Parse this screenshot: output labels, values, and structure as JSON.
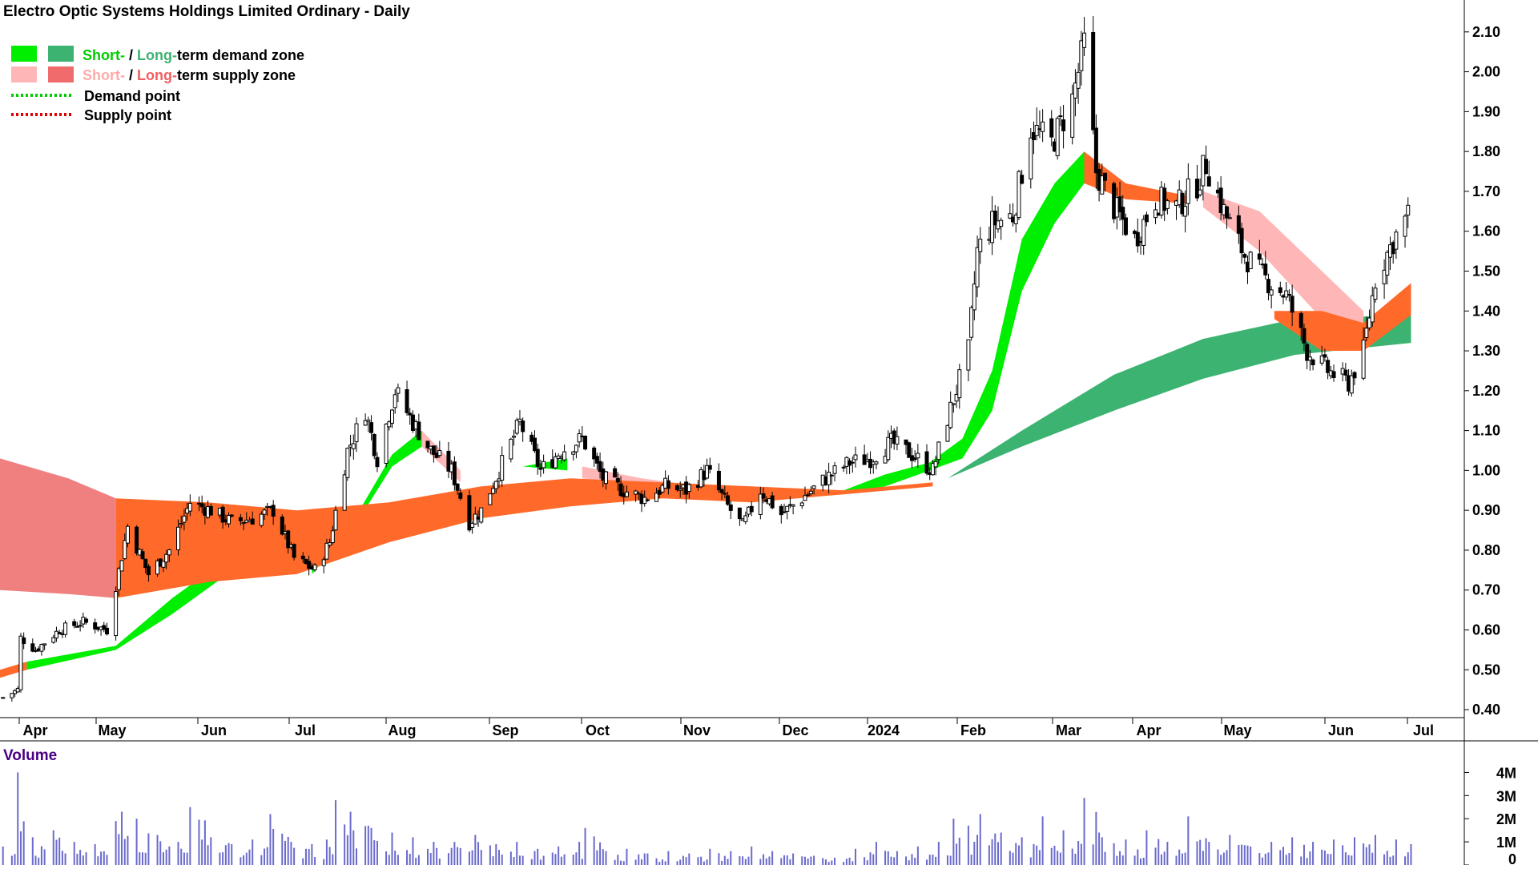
{
  "title": "Electro Optic Systems Holdings Limited Ordinary - Daily",
  "legend": {
    "demand_zone": {
      "short": "Short-",
      "sep": " / ",
      "long": "Long-",
      "rest": "term demand zone"
    },
    "supply_zone": {
      "short": "Short-",
      "sep": " / ",
      "long": "Long-",
      "rest": "term supply zone"
    },
    "demand_point": "Demand point",
    "supply_point": "Supply point"
  },
  "colors": {
    "short_demand": "#00ee00",
    "long_demand": "#3cb371",
    "short_supply": "#ffb6b6",
    "long_supply": "#ff6a2a",
    "early_supply": "#f08080",
    "demand_point": "#00cc00",
    "supply_point": "#dd0000",
    "volume": "#6a6acd",
    "volume_label": "#4b0082"
  },
  "volume_label": "Volume",
  "chart_data": [
    {
      "type": "candlestick",
      "title": "Electro Optic Systems Holdings Limited Ordinary - Daily",
      "x_tick_labels": [
        "Apr",
        "May",
        "Jun",
        "Jul",
        "Aug",
        "Sep",
        "Oct",
        "Nov",
        "Dec",
        "2024",
        "Feb",
        "Mar",
        "Apr",
        "May",
        "Jun",
        "Jul"
      ],
      "x_range": [
        "2023-03-23",
        "2024-07-15"
      ],
      "y_tick_labels": [
        "0.40",
        "0.50",
        "0.60",
        "0.70",
        "0.80",
        "0.90",
        "1.00",
        "1.10",
        "1.20",
        "1.30",
        "1.40",
        "1.50",
        "1.60",
        "1.70",
        "1.80",
        "1.90",
        "2.00",
        "2.10"
      ],
      "ylim": [
        0.38,
        2.18
      ],
      "y_axis_position": "right",
      "grid": false,
      "legend_position": "top-left",
      "price_path": [
        [
          "2023-03-24",
          0.43
        ],
        [
          "2023-03-29",
          0.45
        ],
        [
          "2023-03-30",
          0.58
        ],
        [
          "2023-04-04",
          0.55
        ],
        [
          "2023-04-12",
          0.6
        ],
        [
          "2023-04-20",
          0.62
        ],
        [
          "2023-04-28",
          0.6
        ],
        [
          "2023-05-05",
          0.86
        ],
        [
          "2023-05-12",
          0.74
        ],
        [
          "2023-05-19",
          0.8
        ],
        [
          "2023-05-26",
          0.92
        ],
        [
          "2023-06-02",
          0.9
        ],
        [
          "2023-06-09",
          0.87
        ],
        [
          "2023-06-16",
          0.88
        ],
        [
          "2023-06-23",
          0.9
        ],
        [
          "2023-06-30",
          0.78
        ],
        [
          "2023-07-07",
          0.75
        ],
        [
          "2023-07-12",
          0.82
        ],
        [
          "2023-07-18",
          1.05
        ],
        [
          "2023-07-24",
          1.15
        ],
        [
          "2023-07-28",
          1.03
        ],
        [
          "2023-08-03",
          1.2
        ],
        [
          "2023-08-09",
          1.12
        ],
        [
          "2023-08-15",
          1.05
        ],
        [
          "2023-08-22",
          1.0
        ],
        [
          "2023-08-28",
          0.87
        ],
        [
          "2023-09-01",
          0.9
        ],
        [
          "2023-09-07",
          1.0
        ],
        [
          "2023-09-14",
          1.12
        ],
        [
          "2023-09-21",
          1.0
        ],
        [
          "2023-09-28",
          1.05
        ],
        [
          "2023-10-05",
          1.08
        ],
        [
          "2023-10-12",
          0.98
        ],
        [
          "2023-10-19",
          0.95
        ],
        [
          "2023-10-26",
          0.93
        ],
        [
          "2023-11-02",
          0.96
        ],
        [
          "2023-11-09",
          0.95
        ],
        [
          "2023-11-16",
          1.0
        ],
        [
          "2023-11-23",
          0.91
        ],
        [
          "2023-11-28",
          0.86
        ],
        [
          "2023-12-04",
          0.95
        ],
        [
          "2023-12-11",
          0.89
        ],
        [
          "2023-12-18",
          0.93
        ],
        [
          "2023-12-26",
          0.98
        ],
        [
          "2024-01-03",
          1.02
        ],
        [
          "2024-01-10",
          1.03
        ],
        [
          "2024-01-17",
          1.07
        ],
        [
          "2024-01-24",
          1.04
        ],
        [
          "2024-01-31",
          1.0
        ],
        [
          "2024-02-05",
          1.13
        ],
        [
          "2024-02-12",
          1.3
        ],
        [
          "2024-02-15",
          1.55
        ],
        [
          "2024-02-20",
          1.62
        ],
        [
          "2024-02-27",
          1.64
        ],
        [
          "2024-03-04",
          1.86
        ],
        [
          "2024-03-11",
          1.82
        ],
        [
          "2024-03-18",
          1.93
        ],
        [
          "2024-03-22",
          2.07
        ],
        [
          "2024-03-26",
          1.75
        ],
        [
          "2024-04-01",
          1.66
        ],
        [
          "2024-04-08",
          1.58
        ],
        [
          "2024-04-15",
          1.68
        ],
        [
          "2024-04-22",
          1.66
        ],
        [
          "2024-04-29",
          1.72
        ],
        [
          "2024-05-02",
          1.77
        ],
        [
          "2024-05-08",
          1.65
        ],
        [
          "2024-05-15",
          1.54
        ],
        [
          "2024-05-22",
          1.48
        ],
        [
          "2024-05-29",
          1.44
        ],
        [
          "2024-06-05",
          1.3
        ],
        [
          "2024-06-12",
          1.25
        ],
        [
          "2024-06-19",
          1.22
        ],
        [
          "2024-06-24",
          1.3
        ],
        [
          "2024-06-28",
          1.48
        ],
        [
          "2024-07-03",
          1.56
        ],
        [
          "2024-07-05",
          1.59
        ],
        [
          "2024-07-09",
          1.64
        ]
      ],
      "zones": [
        {
          "name": "Short-term demand zone",
          "color": "#00ee00",
          "segments": [
            [
              [
                "2023-04-01",
                0.5,
                0.52
              ],
              [
                "2023-05-01",
                0.55,
                0.56
              ],
              [
                "2023-05-20",
                0.64,
                0.68
              ],
              [
                "2023-06-15",
                0.78,
                0.82
              ],
              [
                "2023-06-29",
                0.8,
                0.83
              ]
            ],
            [
              [
                "2023-07-06",
                0.74,
                0.76
              ],
              [
                "2023-07-22",
                0.88,
                0.9
              ],
              [
                "2023-08-02",
                1.01,
                1.04
              ],
              [
                "2023-08-12",
                1.06,
                1.1
              ]
            ],
            [
              [
                "2023-09-15",
                1.01,
                1.01
              ],
              [
                "2023-09-30",
                1.0,
                1.03
              ]
            ],
            [
              [
                "2024-01-01",
                0.94,
                0.95
              ],
              [
                "2024-01-15",
                0.96,
                0.99
              ],
              [
                "2024-01-30",
                1.0,
                1.02
              ],
              [
                "2024-02-10",
                1.03,
                1.08
              ],
              [
                "2024-02-20",
                1.15,
                1.25
              ],
              [
                "2024-03-01",
                1.45,
                1.58
              ],
              [
                "2024-03-12",
                1.62,
                1.72
              ],
              [
                "2024-03-22",
                1.72,
                1.8
              ]
            ]
          ]
        },
        {
          "name": "Long-term demand zone",
          "color": "#3cb371",
          "segments": [
            [
              [
                "2024-02-05",
                0.98,
                0.98
              ],
              [
                "2024-03-01",
                1.06,
                1.1
              ],
              [
                "2024-04-01",
                1.15,
                1.24
              ],
              [
                "2024-05-01",
                1.23,
                1.33
              ],
              [
                "2024-06-01",
                1.29,
                1.38
              ],
              [
                "2024-07-10",
                1.32,
                1.39
              ]
            ]
          ]
        },
        {
          "name": "Short-term supply zone",
          "color": "#ffb6b6",
          "segments": [
            [
              [
                "2023-08-12",
                1.06,
                1.1
              ],
              [
                "2023-08-25",
                0.97,
                1.0
              ]
            ],
            [
              [
                "2023-10-05",
                0.98,
                1.01
              ],
              [
                "2023-10-25",
                0.96,
                0.98
              ],
              [
                "2023-11-15",
                0.95,
                0.96
              ],
              [
                "2023-12-10",
                0.94,
                0.95
              ]
            ],
            [
              [
                "2024-05-01",
                1.66,
                1.7
              ],
              [
                "2024-05-20",
                1.55,
                1.65
              ],
              [
                "2024-06-10",
                1.38,
                1.5
              ],
              [
                "2024-06-24",
                1.33,
                1.4
              ]
            ]
          ]
        },
        {
          "name": "Long-term supply zone",
          "color": "#ff6a2a",
          "segments": [
            [
              [
                "2023-03-23",
                0.48,
                0.5
              ],
              [
                "2023-04-01",
                0.5,
                0.52
              ]
            ],
            [
              [
                "2023-05-01",
                0.68,
                0.93
              ],
              [
                "2023-06-01",
                0.72,
                0.92
              ],
              [
                "2023-07-01",
                0.74,
                0.9
              ],
              [
                "2023-08-01",
                0.82,
                0.92
              ],
              [
                "2023-09-01",
                0.88,
                0.96
              ],
              [
                "2023-10-01",
                0.91,
                0.98
              ],
              [
                "2023-11-01",
                0.93,
                0.97
              ],
              [
                "2023-12-01",
                0.92,
                0.96
              ],
              [
                "2024-01-01",
                0.94,
                0.95
              ],
              [
                "2024-01-31",
                0.96,
                0.97
              ]
            ],
            [
              [
                "2024-03-22",
                1.72,
                1.8
              ],
              [
                "2024-04-05",
                1.68,
                1.72
              ],
              [
                "2024-04-25",
                1.67,
                1.69
              ]
            ],
            [
              [
                "2024-05-25",
                1.38,
                1.4
              ],
              [
                "2024-06-10",
                1.3,
                1.4
              ],
              [
                "2024-06-24",
                1.3,
                1.37
              ],
              [
                "2024-07-10",
                1.39,
                1.47
              ]
            ]
          ]
        },
        {
          "name": "Supply zone (early)",
          "color": "#f08080",
          "segments": [
            [
              [
                "2023-03-23",
                0.7,
                1.03
              ],
              [
                "2023-04-15",
                0.69,
                0.98
              ],
              [
                "2023-05-01",
                0.68,
                0.93
              ]
            ]
          ]
        }
      ]
    },
    {
      "type": "bar",
      "title": "Volume",
      "y_tick_labels": [
        "0",
        "1M",
        "2M",
        "3M",
        "4M"
      ],
      "ylim": [
        0,
        4500000
      ],
      "x_range": [
        "2023-03-23",
        "2024-07-15"
      ],
      "values_unit": "shares",
      "values": [
        [
          "2023-03-24",
          800000
        ],
        [
          "2023-03-29",
          4000000
        ],
        [
          "2023-04-03",
          1200000
        ],
        [
          "2023-04-10",
          1500000
        ],
        [
          "2023-04-17",
          1000000
        ],
        [
          "2023-04-24",
          900000
        ],
        [
          "2023-05-01",
          1900000
        ],
        [
          "2023-05-03",
          2300000
        ],
        [
          "2023-05-08",
          2000000
        ],
        [
          "2023-05-15",
          1300000
        ],
        [
          "2023-05-22",
          1000000
        ],
        [
          "2023-05-26",
          2500000
        ],
        [
          "2023-06-02",
          1200000
        ],
        [
          "2023-06-09",
          900000
        ],
        [
          "2023-06-16",
          1100000
        ],
        [
          "2023-06-22",
          2200000
        ],
        [
          "2023-06-29",
          1000000
        ],
        [
          "2023-07-06",
          900000
        ],
        [
          "2023-07-11",
          1100000
        ],
        [
          "2023-07-14",
          2800000
        ],
        [
          "2023-07-19",
          2300000
        ],
        [
          "2023-07-26",
          1600000
        ],
        [
          "2023-08-02",
          1400000
        ],
        [
          "2023-08-09",
          1200000
        ],
        [
          "2023-08-16",
          1000000
        ],
        [
          "2023-08-23",
          1000000
        ],
        [
          "2023-08-30",
          1300000
        ],
        [
          "2023-09-06",
          900000
        ],
        [
          "2023-09-13",
          1000000
        ],
        [
          "2023-09-20",
          700000
        ],
        [
          "2023-09-27",
          800000
        ],
        [
          "2023-10-04",
          1000000
        ],
        [
          "2023-10-06",
          1600000
        ],
        [
          "2023-10-13",
          600000
        ],
        [
          "2023-10-20",
          700000
        ],
        [
          "2023-10-27",
          500000
        ],
        [
          "2023-11-03",
          600000
        ],
        [
          "2023-11-10",
          500000
        ],
        [
          "2023-11-17",
          700000
        ],
        [
          "2023-11-24",
          600000
        ],
        [
          "2023-12-01",
          800000
        ],
        [
          "2023-12-08",
          600000
        ],
        [
          "2023-12-15",
          500000
        ],
        [
          "2023-12-22",
          400000
        ],
        [
          "2024-01-05",
          700000
        ],
        [
          "2024-01-12",
          1000000
        ],
        [
          "2024-01-19",
          600000
        ],
        [
          "2024-01-26",
          800000
        ],
        [
          "2024-02-02",
          1000000
        ],
        [
          "2024-02-07",
          2000000
        ],
        [
          "2024-02-12",
          1700000
        ],
        [
          "2024-02-16",
          2200000
        ],
        [
          "2024-02-23",
          1400000
        ],
        [
          "2024-03-01",
          1200000
        ],
        [
          "2024-03-08",
          2100000
        ],
        [
          "2024-03-15",
          1500000
        ],
        [
          "2024-03-22",
          2900000
        ],
        [
          "2024-03-28",
          1200000
        ],
        [
          "2024-04-05",
          1100000
        ],
        [
          "2024-04-12",
          1500000
        ],
        [
          "2024-04-19",
          1000000
        ],
        [
          "2024-04-26",
          2100000
        ],
        [
          "2024-05-03",
          1000000
        ],
        [
          "2024-05-10",
          1300000
        ],
        [
          "2024-05-17",
          800000
        ],
        [
          "2024-05-24",
          1000000
        ],
        [
          "2024-05-31",
          1200000
        ],
        [
          "2024-06-07",
          1000000
        ],
        [
          "2024-06-14",
          1100000
        ],
        [
          "2024-06-21",
          1200000
        ],
        [
          "2024-06-28",
          1300000
        ],
        [
          "2024-07-05",
          1100000
        ],
        [
          "2024-07-10",
          900000
        ]
      ]
    }
  ]
}
